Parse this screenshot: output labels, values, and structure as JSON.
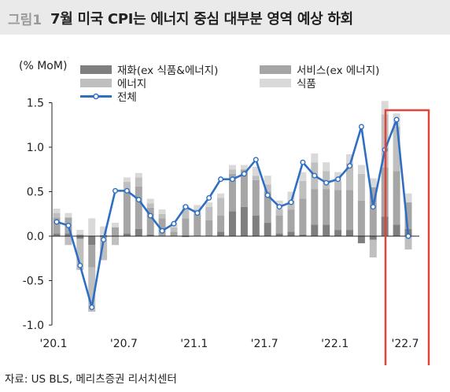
{
  "header": {
    "figure_number": "그림1",
    "title": "7월 미국 CPI는 에너지 중심 대부분 영역 예상 하회"
  },
  "footer": {
    "source": "자료: US BLS, 메리츠증권 리서치센터"
  },
  "chart_data": {
    "type": "bar",
    "stacked": true,
    "unit_label": "(% MoM)",
    "ylim": [
      -1.0,
      1.5
    ],
    "yticks": [
      "1.5",
      "1.0",
      "0.5",
      "0.0",
      "-0.5",
      "-1.0"
    ],
    "ytick_values": [
      1.5,
      1.0,
      0.5,
      0.0,
      -0.5,
      -1.0
    ],
    "grid": false,
    "legend_position": "top",
    "x_tick_labels": [
      {
        "index": 0,
        "label": "'20.1"
      },
      {
        "index": 6,
        "label": "'20.7"
      },
      {
        "index": 12,
        "label": "'21.1"
      },
      {
        "index": 18,
        "label": "'21.7"
      },
      {
        "index": 24,
        "label": "'22.1"
      },
      {
        "index": 30,
        "label": "'22.7"
      }
    ],
    "series": [
      {
        "name": "재화(ex 식품&에너지)",
        "kind": "bar",
        "color": "#7f7f7f",
        "values": [
          0.03,
          0.03,
          -0.03,
          -0.1,
          0.01,
          0.0,
          0.03,
          0.08,
          0.02,
          0.0,
          0.0,
          -0.01,
          0.0,
          0.0,
          0.05,
          0.28,
          0.33,
          0.23,
          0.15,
          0.03,
          0.05,
          0.02,
          0.13,
          0.13,
          0.07,
          0.07,
          -0.08,
          -0.04,
          0.22,
          0.13,
          0.08
        ]
      },
      {
        "name": "서비스(ex 에너지)",
        "kind": "bar",
        "color": "#a6a6a6",
        "values": [
          0.18,
          0.18,
          0.02,
          -0.25,
          -0.02,
          0.1,
          0.48,
          0.48,
          0.3,
          0.2,
          0.05,
          0.2,
          0.25,
          0.18,
          0.18,
          0.42,
          0.42,
          0.4,
          0.35,
          0.2,
          0.25,
          0.4,
          0.4,
          0.4,
          0.45,
          0.45,
          0.4,
          0.55,
          0.55,
          0.6,
          0.3
        ]
      },
      {
        "name": "에너지",
        "kind": "bar",
        "color": "#bfbfbf",
        "values": [
          0.05,
          -0.1,
          -0.35,
          -0.5,
          -0.25,
          -0.1,
          0.1,
          0.1,
          0.05,
          0.05,
          0.05,
          0.1,
          0.05,
          0.15,
          0.2,
          0.05,
          0.0,
          0.05,
          0.08,
          0.07,
          0.1,
          0.2,
          0.3,
          0.2,
          0.1,
          0.3,
          0.3,
          -0.2,
          0.6,
          0.5,
          -0.15
        ]
      },
      {
        "name": "식품",
        "kind": "bar",
        "color": "#d9d9d9",
        "values": [
          0.05,
          0.05,
          0.05,
          0.2,
          0.1,
          0.05,
          0.05,
          0.05,
          0.05,
          0.05,
          0.05,
          0.05,
          0.05,
          0.05,
          0.05,
          0.05,
          0.05,
          0.1,
          0.1,
          0.1,
          0.1,
          0.1,
          0.1,
          0.1,
          0.1,
          0.1,
          0.1,
          0.1,
          0.15,
          0.15,
          0.1
        ]
      },
      {
        "name": "전체",
        "kind": "line",
        "color": "#2e6fc4",
        "values": [
          0.16,
          0.12,
          -0.33,
          -0.8,
          -0.04,
          0.51,
          0.51,
          0.41,
          0.23,
          0.06,
          0.14,
          0.33,
          0.26,
          0.43,
          0.64,
          0.64,
          0.7,
          0.86,
          0.46,
          0.33,
          0.38,
          0.83,
          0.68,
          0.6,
          0.64,
          0.79,
          1.23,
          0.33,
          0.97,
          1.31,
          0.0
        ]
      }
    ]
  }
}
